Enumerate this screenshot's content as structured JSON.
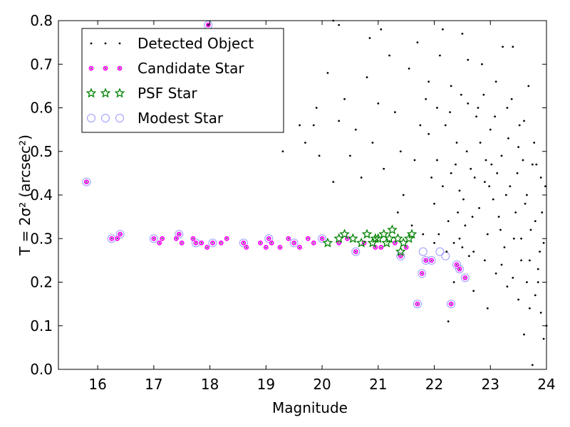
{
  "chart_data": {
    "type": "scatter",
    "xlabel": "Magnitude",
    "ylabel": "T = 2σ² (arcsec²)",
    "xlim": [
      15.3,
      24
    ],
    "ylim": [
      0.0,
      0.8
    ],
    "xticks": [
      "16",
      "17",
      "18",
      "19",
      "20",
      "21",
      "22",
      "23",
      "24"
    ],
    "yticks": [
      "0.0",
      "0.1",
      "0.2",
      "0.3",
      "0.4",
      "0.5",
      "0.6",
      "0.7",
      "0.8"
    ],
    "grid": false,
    "legend_position": "top-left",
    "series": [
      {
        "name": "Detected Object",
        "marker": "dot",
        "color": "#000000",
        "points": [
          [
            21.55,
            0.69
          ],
          [
            21.7,
            0.75
          ],
          [
            21.85,
            0.62
          ],
          [
            21.9,
            0.54
          ],
          [
            21.95,
            0.44
          ],
          [
            22.0,
            0.38
          ],
          [
            22.05,
            0.48
          ],
          [
            22.1,
            0.72
          ],
          [
            22.2,
            0.56
          ],
          [
            22.25,
            0.34
          ],
          [
            22.3,
            0.65
          ],
          [
            22.35,
            0.29
          ],
          [
            22.4,
            0.52
          ],
          [
            22.45,
            0.41
          ],
          [
            22.5,
            0.77
          ],
          [
            22.55,
            0.33
          ],
          [
            22.6,
            0.61
          ],
          [
            22.65,
            0.46
          ],
          [
            22.7,
            0.27
          ],
          [
            22.75,
            0.58
          ],
          [
            22.8,
            0.37
          ],
          [
            22.85,
            0.7
          ],
          [
            22.9,
            0.43
          ],
          [
            22.95,
            0.31
          ],
          [
            23.0,
            0.55
          ],
          [
            23.05,
            0.39
          ],
          [
            23.1,
            0.66
          ],
          [
            23.15,
            0.35
          ],
          [
            23.2,
            0.49
          ],
          [
            23.25,
            0.28
          ],
          [
            23.3,
            0.6
          ],
          [
            23.35,
            0.42
          ],
          [
            23.4,
            0.74
          ],
          [
            23.45,
            0.36
          ],
          [
            23.5,
            0.51
          ],
          [
            23.55,
            0.3
          ],
          [
            23.6,
            0.57
          ],
          [
            23.65,
            0.4
          ],
          [
            23.7,
            0.25
          ],
          [
            23.75,
            0.47
          ],
          [
            23.8,
            0.34
          ],
          [
            23.85,
            0.2
          ],
          [
            23.9,
            0.44
          ],
          [
            23.95,
            0.29
          ],
          [
            22.15,
            0.42
          ],
          [
            22.28,
            0.59
          ],
          [
            22.42,
            0.36
          ],
          [
            22.58,
            0.5
          ],
          [
            22.72,
            0.44
          ],
          [
            22.88,
            0.63
          ],
          [
            23.02,
            0.47
          ],
          [
            23.18,
            0.32
          ],
          [
            23.32,
            0.53
          ],
          [
            23.48,
            0.45
          ],
          [
            23.62,
            0.38
          ],
          [
            23.78,
            0.52
          ],
          [
            23.92,
            0.36
          ],
          [
            22.08,
            0.31
          ],
          [
            22.22,
            0.27
          ],
          [
            22.38,
            0.47
          ],
          [
            22.52,
            0.39
          ],
          [
            22.68,
            0.35
          ],
          [
            22.82,
            0.52
          ],
          [
            22.98,
            0.42
          ],
          [
            23.12,
            0.45
          ],
          [
            23.28,
            0.4
          ],
          [
            23.42,
            0.3
          ],
          [
            23.58,
            0.48
          ],
          [
            23.72,
            0.32
          ],
          [
            23.88,
            0.27
          ],
          [
            21.3,
            0.59
          ],
          [
            21.4,
            0.5
          ],
          [
            21.2,
            0.72
          ],
          [
            21.1,
            0.46
          ],
          [
            21.0,
            0.61
          ],
          [
            20.9,
            0.52
          ],
          [
            20.8,
            0.67
          ],
          [
            20.7,
            0.44
          ],
          [
            20.6,
            0.55
          ],
          [
            20.5,
            0.49
          ],
          [
            20.4,
            0.62
          ],
          [
            20.3,
            0.57
          ],
          [
            20.2,
            0.43
          ],
          [
            20.1,
            0.68
          ],
          [
            19.9,
            0.6
          ],
          [
            19.6,
            0.56
          ],
          [
            19.3,
            0.5
          ],
          [
            19.7,
            0.52
          ],
          [
            20.85,
            0.76
          ],
          [
            21.05,
            0.78
          ],
          [
            21.35,
            0.36
          ],
          [
            21.45,
            0.4
          ],
          [
            21.6,
            0.33
          ],
          [
            21.8,
            0.31
          ],
          [
            22.0,
            0.29
          ],
          [
            22.5,
            0.28
          ],
          [
            22.9,
            0.25
          ],
          [
            23.1,
            0.22
          ],
          [
            23.3,
            0.19
          ],
          [
            23.5,
            0.16
          ],
          [
            23.7,
            0.14
          ],
          [
            23.9,
            0.13
          ],
          [
            23.6,
            0.08
          ],
          [
            23.75,
            0.01
          ],
          [
            23.95,
            0.07
          ],
          [
            22.25,
            0.11
          ],
          [
            22.35,
            0.2
          ],
          [
            22.7,
            0.18
          ],
          [
            22.95,
            0.14
          ],
          [
            23.2,
            0.24
          ],
          [
            23.4,
            0.21
          ],
          [
            23.65,
            0.2
          ],
          [
            23.85,
            0.23
          ],
          [
            22.45,
            0.3
          ],
          [
            22.62,
            0.26
          ],
          [
            23.55,
            0.25
          ],
          [
            23.8,
            0.17
          ],
          [
            24.0,
            0.1
          ],
          [
            21.65,
            0.48
          ],
          [
            21.75,
            0.56
          ],
          [
            21.9,
            0.66
          ],
          [
            22.05,
            0.6
          ],
          [
            22.15,
            0.78
          ],
          [
            22.3,
            0.45
          ],
          [
            22.48,
            0.63
          ],
          [
            22.6,
            0.71
          ],
          [
            22.78,
            0.6
          ],
          [
            22.92,
            0.48
          ],
          [
            23.08,
            0.58
          ],
          [
            23.22,
            0.74
          ],
          [
            23.38,
            0.62
          ],
          [
            23.52,
            0.56
          ],
          [
            23.68,
            0.65
          ],
          [
            23.82,
            0.47
          ],
          [
            23.98,
            0.42
          ],
          [
            17.97,
            0.79
          ],
          [
            20.2,
            0.8
          ],
          [
            20.3,
            0.79
          ],
          [
            19.85,
            0.56
          ],
          [
            19.95,
            0.49
          ]
        ]
      },
      {
        "name": "Candidate Star",
        "marker": "small-circle",
        "color": "#ff00ff",
        "points": [
          [
            15.8,
            0.43
          ],
          [
            16.25,
            0.3
          ],
          [
            16.35,
            0.3
          ],
          [
            16.4,
            0.31
          ],
          [
            17.0,
            0.3
          ],
          [
            17.1,
            0.29
          ],
          [
            17.15,
            0.3
          ],
          [
            17.4,
            0.3
          ],
          [
            17.45,
            0.31
          ],
          [
            17.5,
            0.29
          ],
          [
            17.7,
            0.3
          ],
          [
            17.75,
            0.29
          ],
          [
            17.85,
            0.29
          ],
          [
            17.95,
            0.28
          ],
          [
            18.05,
            0.29
          ],
          [
            18.2,
            0.29
          ],
          [
            18.3,
            0.3
          ],
          [
            18.6,
            0.29
          ],
          [
            18.65,
            0.28
          ],
          [
            18.9,
            0.29
          ],
          [
            19.0,
            0.28
          ],
          [
            19.05,
            0.3
          ],
          [
            19.1,
            0.29
          ],
          [
            19.25,
            0.28
          ],
          [
            19.4,
            0.3
          ],
          [
            19.5,
            0.29
          ],
          [
            19.6,
            0.28
          ],
          [
            19.75,
            0.3
          ],
          [
            19.85,
            0.29
          ],
          [
            20.0,
            0.3
          ],
          [
            20.3,
            0.29
          ],
          [
            20.45,
            0.3
          ],
          [
            20.6,
            0.27
          ],
          [
            20.75,
            0.29
          ],
          [
            20.95,
            0.28
          ],
          [
            21.05,
            0.28
          ],
          [
            21.3,
            0.29
          ],
          [
            21.4,
            0.26
          ],
          [
            21.5,
            0.28
          ],
          [
            21.7,
            0.15
          ],
          [
            21.78,
            0.22
          ],
          [
            21.85,
            0.25
          ],
          [
            21.95,
            0.25
          ],
          [
            22.3,
            0.15
          ],
          [
            22.4,
            0.24
          ],
          [
            22.45,
            0.23
          ],
          [
            22.55,
            0.21
          ],
          [
            17.97,
            0.79
          ]
        ]
      },
      {
        "name": "PSF Star",
        "marker": "star",
        "color": "#008000",
        "points": [
          [
            20.1,
            0.29
          ],
          [
            20.3,
            0.3
          ],
          [
            20.4,
            0.31
          ],
          [
            20.55,
            0.3
          ],
          [
            20.7,
            0.29
          ],
          [
            20.8,
            0.31
          ],
          [
            20.9,
            0.29
          ],
          [
            21.0,
            0.3
          ],
          [
            21.1,
            0.31
          ],
          [
            21.2,
            0.3
          ],
          [
            21.25,
            0.32
          ],
          [
            21.35,
            0.3
          ],
          [
            21.45,
            0.29
          ],
          [
            21.55,
            0.3
          ],
          [
            21.6,
            0.31
          ],
          [
            21.4,
            0.27
          ],
          [
            20.95,
            0.3
          ],
          [
            21.15,
            0.29
          ]
        ]
      },
      {
        "name": "Modest Star",
        "marker": "open-circle",
        "color": "#9999ff",
        "points": [
          [
            15.8,
            0.43
          ],
          [
            16.25,
            0.3
          ],
          [
            16.4,
            0.31
          ],
          [
            17.0,
            0.3
          ],
          [
            17.45,
            0.31
          ],
          [
            17.75,
            0.29
          ],
          [
            18.05,
            0.29
          ],
          [
            18.6,
            0.29
          ],
          [
            19.05,
            0.3
          ],
          [
            19.5,
            0.29
          ],
          [
            20.0,
            0.3
          ],
          [
            20.6,
            0.27
          ],
          [
            21.4,
            0.26
          ],
          [
            21.7,
            0.15
          ],
          [
            21.78,
            0.22
          ],
          [
            21.85,
            0.25
          ],
          [
            21.95,
            0.25
          ],
          [
            22.1,
            0.27
          ],
          [
            22.2,
            0.26
          ],
          [
            22.3,
            0.15
          ],
          [
            22.4,
            0.24
          ],
          [
            22.45,
            0.23
          ],
          [
            22.55,
            0.21
          ],
          [
            21.8,
            0.27
          ],
          [
            17.97,
            0.79
          ]
        ]
      }
    ]
  }
}
